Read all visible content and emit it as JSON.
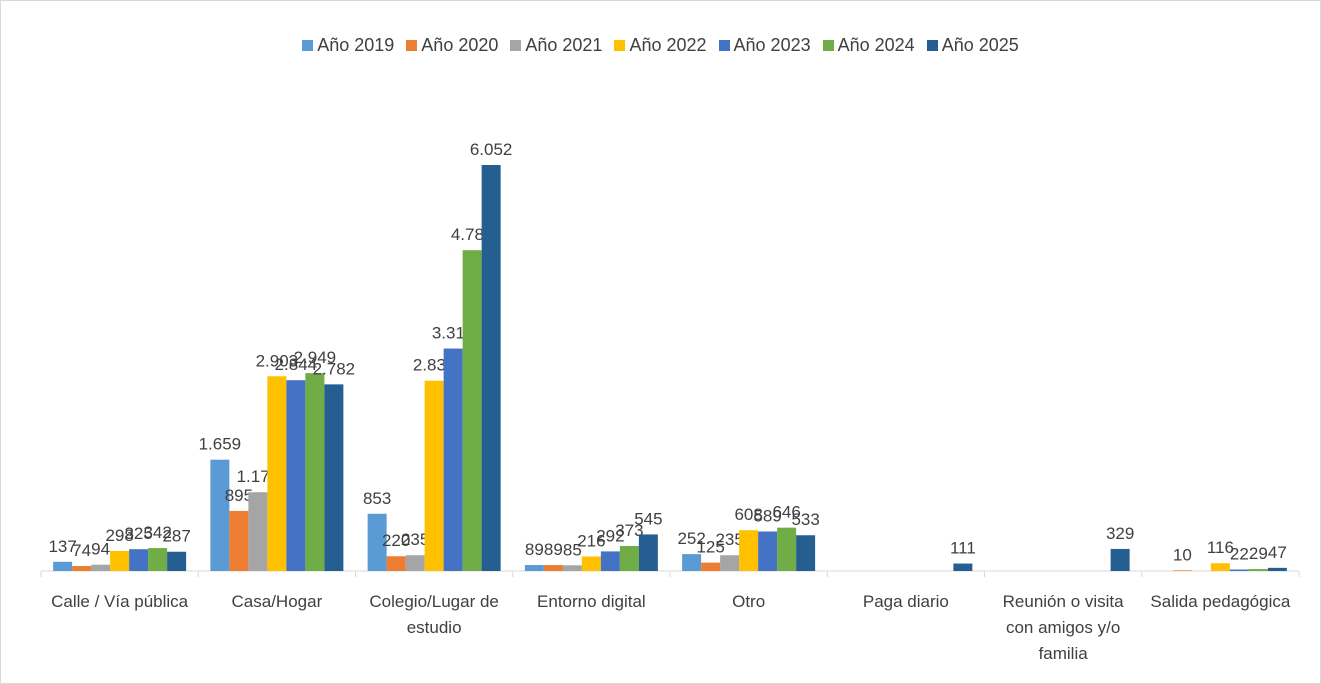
{
  "chart_data": {
    "type": "bar",
    "categories": [
      "Calle / Vía pública",
      "Casa/Hogar",
      "Colegio/Lugar de estudio",
      "Entorno digital",
      "Otro",
      "Paga diario",
      "Reunión o visita con amigos y/o familia",
      "Salida pedagógica"
    ],
    "series": [
      {
        "name": "Año 2019",
        "color": "#5b9bd5",
        "values": [
          137,
          1659,
          853,
          89,
          252,
          null,
          null,
          null
        ],
        "value_labels": [
          "137",
          "1.659",
          "853",
          "89",
          "252",
          null,
          null,
          null
        ]
      },
      {
        "name": "Año 2020",
        "color": "#ed7d31",
        "values": [
          74,
          895,
          220,
          89,
          125,
          null,
          null,
          10
        ],
        "value_labels": [
          "74",
          "895",
          "220",
          "89",
          "125",
          null,
          null,
          "10"
        ]
      },
      {
        "name": "Año 2021",
        "color": "#a5a5a5",
        "values": [
          94,
          1174,
          235,
          85,
          235,
          null,
          null,
          null
        ],
        "value_labels": [
          "94",
          "1.174",
          "235",
          "85",
          "235",
          null,
          null,
          null
        ]
      },
      {
        "name": "Año 2022",
        "color": "#ffc000",
        "values": [
          298,
          2903,
          2836,
          216,
          608,
          null,
          null,
          116
        ],
        "value_labels": [
          "298",
          "2.903",
          "2.836",
          "216",
          "608",
          null,
          null,
          "116"
        ]
      },
      {
        "name": "Año 2023",
        "color": "#4472c4",
        "values": [
          325,
          2844,
          3316,
          292,
          589,
          null,
          null,
          22
        ],
        "value_labels": [
          "325",
          "2.844",
          "3.316",
          "292",
          "589",
          null,
          null,
          "22"
        ]
      },
      {
        "name": "Año 2024",
        "color": "#70ad47",
        "values": [
          342,
          2949,
          4782,
          373,
          646,
          null,
          null,
          29
        ],
        "value_labels": [
          "342",
          "2.949",
          "4.782",
          "373",
          "646",
          null,
          null,
          "29"
        ]
      },
      {
        "name": "Año 2025",
        "color": "#255e91",
        "values": [
          287,
          2782,
          6052,
          545,
          533,
          111,
          329,
          47
        ],
        "value_labels": [
          "287",
          "2.782",
          "6.052",
          "545",
          "533",
          "111",
          "329",
          "47"
        ]
      }
    ]
  }
}
